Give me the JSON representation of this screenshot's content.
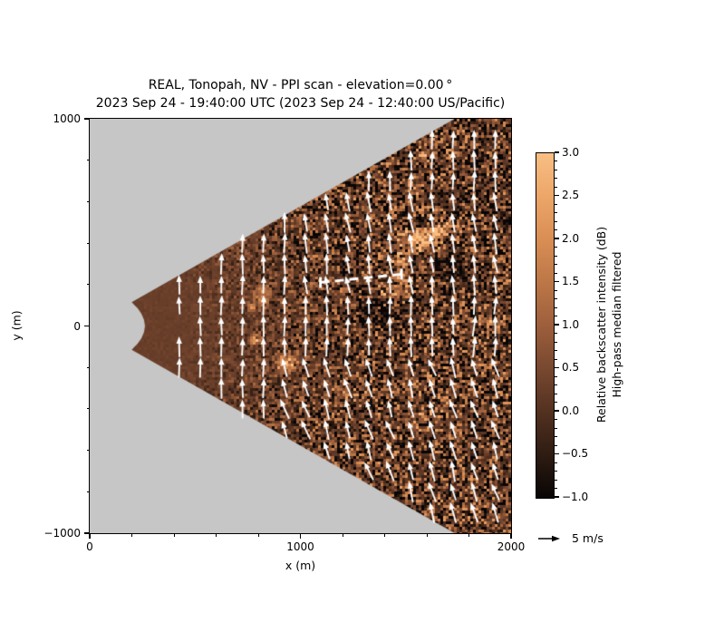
{
  "figure": {
    "title_line1": "REAL, Tonopah, NV - PPI scan - elevation=0.00 °",
    "title_line2": "2023 Sep 24 - 19:40:00 UTC (2023 Sep 24 - 12:40:00 US/Pacific)"
  },
  "axes": {
    "xlabel": "x (m)",
    "ylabel": "y (m)",
    "xlim": [
      0,
      2000
    ],
    "ylim": [
      -1000,
      1000
    ],
    "xticks": [
      {
        "value": 0,
        "label": "0"
      },
      {
        "value": 1000,
        "label": "1000"
      },
      {
        "value": 2000,
        "label": "2000"
      }
    ],
    "yticks": [
      {
        "value": 1000,
        "label": "1000"
      },
      {
        "value": 0,
        "label": "0"
      },
      {
        "value": -1000,
        "label": "−1000"
      }
    ],
    "minor_tick_step_m": 200
  },
  "colorbar": {
    "label_line1": "Relative backscatter intensity (dB)",
    "label_line2": "High-pass median filtered",
    "vmin": -1.0,
    "vmax": 3.0,
    "ticks": [
      {
        "value": 3.0,
        "label": "3.0"
      },
      {
        "value": 2.5,
        "label": "2.5"
      },
      {
        "value": 2.0,
        "label": "2.0"
      },
      {
        "value": 1.5,
        "label": "1.5"
      },
      {
        "value": 1.0,
        "label": "1.0"
      },
      {
        "value": 0.5,
        "label": "0.5"
      },
      {
        "value": 0.0,
        "label": "0.0"
      },
      {
        "value": -0.5,
        "label": "−0.5"
      },
      {
        "value": -1.0,
        "label": "−1.0"
      }
    ],
    "minor_tick_step": 0.1,
    "colormap_stops": [
      {
        "v": -1.0,
        "c": "#080505"
      },
      {
        "v": -0.5,
        "c": "#2e1c12"
      },
      {
        "v": 0.0,
        "c": "#533120"
      },
      {
        "v": 0.5,
        "c": "#784830"
      },
      {
        "v": 1.0,
        "c": "#9d5f3c"
      },
      {
        "v": 1.5,
        "c": "#bc7747"
      },
      {
        "v": 2.0,
        "c": "#d98e54"
      },
      {
        "v": 2.5,
        "c": "#eca668"
      },
      {
        "v": 3.0,
        "c": "#f9bf83"
      }
    ]
  },
  "quiver_key": {
    "label": "5 m/s",
    "speed_ms": 5
  },
  "colors": {
    "outside_scan_gray": "#c6c6c6",
    "figure_background": "#ffffff",
    "arrow_color": "#ffffff",
    "annotation_color": "#ffffff",
    "tick_color": "#000000"
  },
  "chart_data": {
    "type": "heatmap",
    "description": "Horizontal PPI aerosol lidar scan (REAL) showing high-pass median filtered relative backscatter intensity (dB) over a ~60 degree sector, overlaid with a grid of white wind vectors (~5 m/s, blowing toward +y/north) and a white dashed annotation line.",
    "scan_sector": {
      "azimuth_half_angle_deg": 30,
      "range_min_m": 230,
      "apex_notch_mid_range_m": 265,
      "range_max_m": 2400,
      "centered_on_positive_x_axis": true
    },
    "background_field": {
      "near_field_mean_db": 0.3,
      "far_field_mean_db": 0.15,
      "near_field_noise_db": 0.05,
      "far_field_noise_db": 1.0
    },
    "aerosol_features": [
      {
        "x_m": 1580,
        "y_m": 415,
        "rx_m": 85,
        "ry_m": 50,
        "amp_db": 2.6
      },
      {
        "x_m": 1665,
        "y_m": 470,
        "rx_m": 55,
        "ry_m": 35,
        "amp_db": 2.0
      },
      {
        "x_m": 1480,
        "y_m": 285,
        "rx_m": 45,
        "ry_m": 95,
        "amp_db": 1.6
      },
      {
        "x_m": 1415,
        "y_m": 175,
        "rx_m": 55,
        "ry_m": 45,
        "amp_db": 1.1
      },
      {
        "x_m": 1540,
        "y_m": 650,
        "rx_m": 60,
        "ry_m": 40,
        "amp_db": 0.9
      },
      {
        "x_m": 820,
        "y_m": 150,
        "rx_m": 28,
        "ry_m": 48,
        "amp_db": 1.9
      },
      {
        "x_m": 770,
        "y_m": 92,
        "rx_m": 16,
        "ry_m": 16,
        "amp_db": 1.5
      },
      {
        "x_m": 783,
        "y_m": -68,
        "rx_m": 30,
        "ry_m": 22,
        "amp_db": 1.9
      },
      {
        "x_m": 933,
        "y_m": -180,
        "rx_m": 46,
        "ry_m": 36,
        "amp_db": 2.5
      },
      {
        "x_m": 1068,
        "y_m": 338,
        "rx_m": 13,
        "ry_m": 13,
        "amp_db": 1.7
      },
      {
        "x_m": 1925,
        "y_m": 18,
        "rx_m": 36,
        "ry_m": 30,
        "amp_db": 1.8
      },
      {
        "x_m": 1588,
        "y_m": 818,
        "rx_m": 26,
        "ry_m": 22,
        "amp_db": 1.6
      },
      {
        "x_m": 1200,
        "y_m": -330,
        "rx_m": 110,
        "ry_m": 45,
        "amp_db": 0.55
      },
      {
        "x_m": 1600,
        "y_m": -430,
        "rx_m": 90,
        "ry_m": 60,
        "amp_db": 0.5
      },
      {
        "x_m": 1740,
        "y_m": 260,
        "rx_m": 95,
        "ry_m": 75,
        "amp_db": -1.0
      },
      {
        "x_m": 1400,
        "y_m": 60,
        "rx_m": 70,
        "ry_m": 70,
        "amp_db": -0.7
      },
      {
        "x_m": 1300,
        "y_m": 90,
        "rx_m": 80,
        "ry_m": 60,
        "amp_db": -0.5
      }
    ],
    "wind_field": {
      "grid_x_start_m": 425,
      "grid_x_end_m": 1925,
      "grid_x_step_m": 100,
      "grid_y_start_m": -900,
      "grid_y_end_m": 900,
      "grid_y_step_m": 100,
      "mean_direction_deg_from_east_ccw": 90,
      "mean_speed_ms": 5,
      "regional_tilts": [
        {
          "x_min": 850,
          "x_max": 2100,
          "y_min": -1000,
          "y_max": -120,
          "tilt_base_deg": 10,
          "tilt_rand_deg": 16
        },
        {
          "x_min": 1000,
          "x_max": 2100,
          "y_min": 120,
          "y_max": 620,
          "tilt_base_deg": 4,
          "tilt_rand_deg": 9
        },
        {
          "x_min": 1750,
          "x_max": 2100,
          "y_min": -120,
          "y_max": 120,
          "tilt_base_deg": -6,
          "tilt_rand_deg": 5
        }
      ]
    },
    "dashed_annotation_line": {
      "x1_m": 1095,
      "y1_m": 210,
      "x2_m": 1480,
      "y2_m": 250,
      "style": "dashed",
      "color": "#ffffff",
      "end_caps": true
    }
  }
}
